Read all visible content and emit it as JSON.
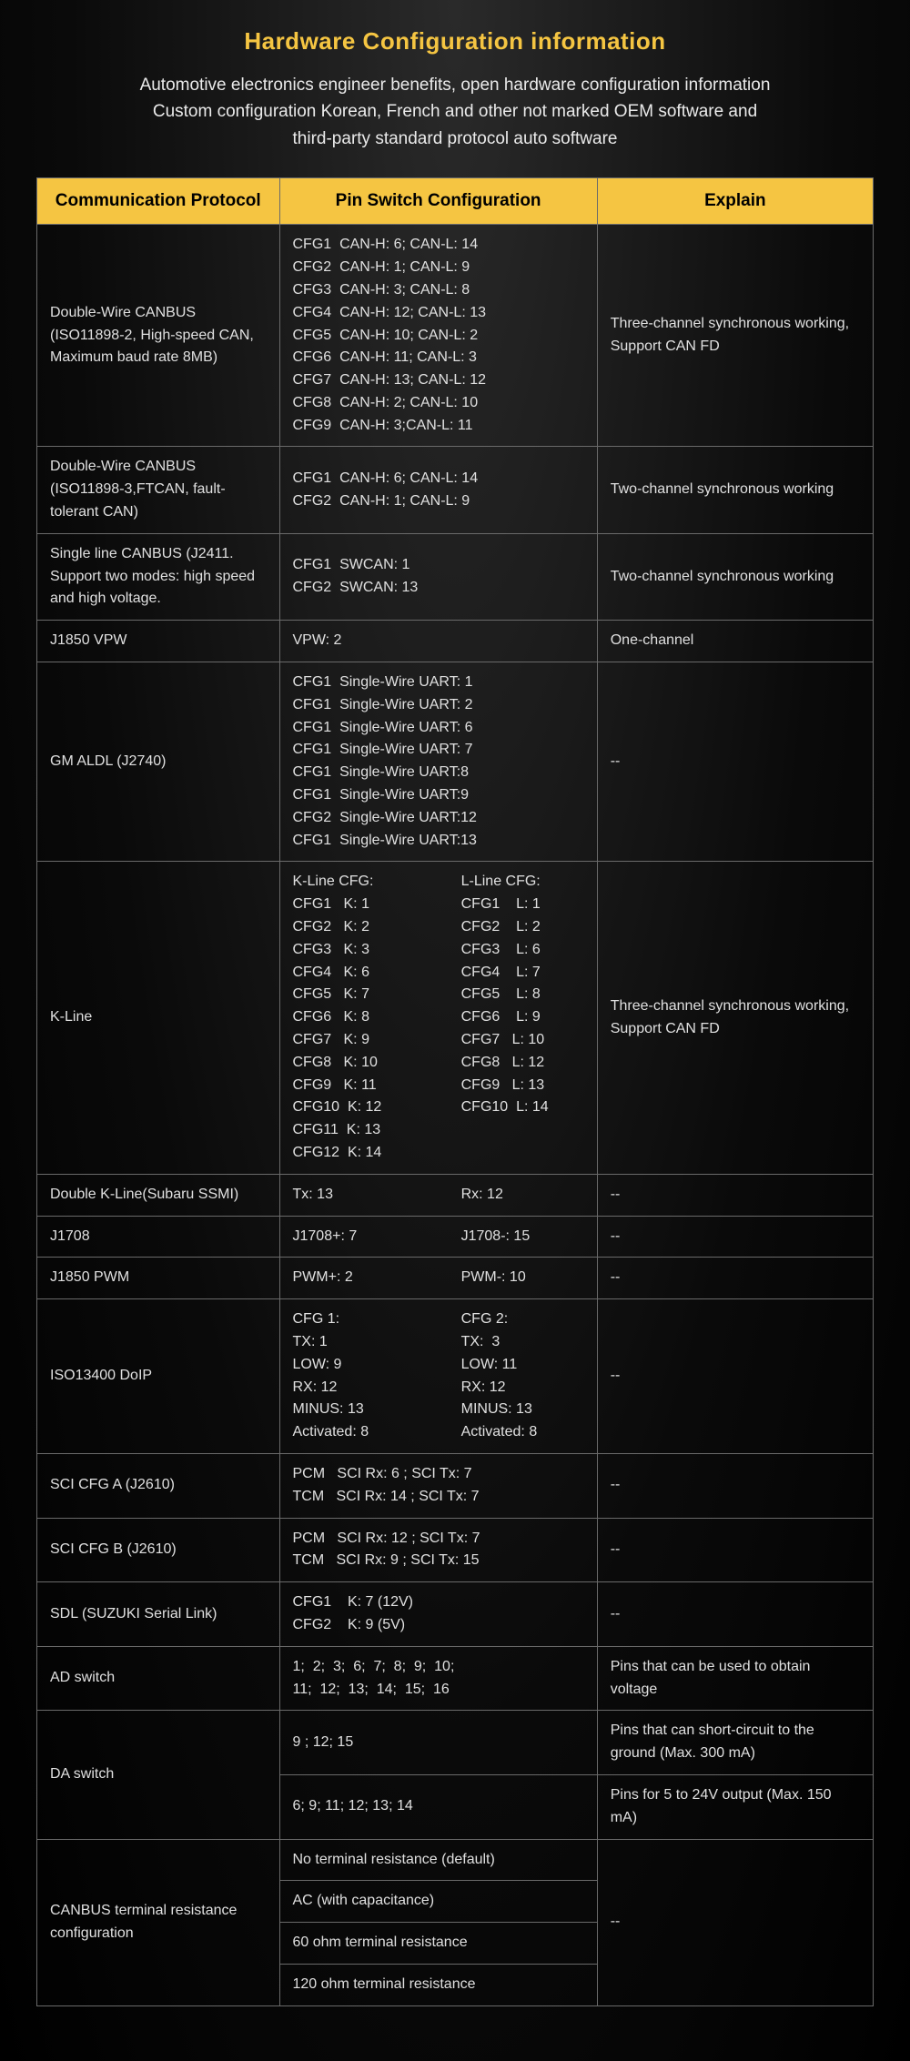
{
  "title": "Hardware Configuration information",
  "subtitle": "Automotive electronics engineer benefits, open hardware configuration information\nCustom configuration Korean, French and other not marked OEM software and\nthird-party standard protocol auto software",
  "columns": [
    "Communication Protocol",
    "Pin Switch Configuration",
    "Explain"
  ],
  "rows": [
    {
      "protocol": "Double-Wire CANBUS (ISO11898-2, High-speed CAN, Maximum baud rate 8MB)",
      "config": "CFG1  CAN-H: 6; CAN-L: 14\nCFG2  CAN-H: 1; CAN-L: 9\nCFG3  CAN-H: 3; CAN-L: 8\nCFG4  CAN-H: 12; CAN-L: 13\nCFG5  CAN-H: 10; CAN-L: 2\nCFG6  CAN-H: 11; CAN-L: 3\nCFG7  CAN-H: 13; CAN-L: 12\nCFG8  CAN-H: 2; CAN-L: 10\nCFG9  CAN-H: 3;CAN-L: 11",
      "explain": "Three-channel synchronous working, Support CAN FD"
    },
    {
      "protocol": "Double-Wire CANBUS (ISO11898-3,FTCAN, fault-tolerant CAN)",
      "config": "CFG1  CAN-H: 6; CAN-L: 14\nCFG2  CAN-H: 1; CAN-L: 9",
      "explain": "Two-channel synchronous working"
    },
    {
      "protocol": "Single line CANBUS (J2411. Support two modes: high speed and high voltage.",
      "config": "CFG1  SWCAN: 1\nCFG2  SWCAN: 13",
      "explain": "Two-channel synchronous working"
    },
    {
      "protocol": "J1850 VPW",
      "config": "VPW: 2",
      "explain": "One-channel"
    },
    {
      "protocol": "GM ALDL (J2740)",
      "config": "CFG1  Single-Wire UART: 1\nCFG1  Single-Wire UART: 2\nCFG1  Single-Wire UART: 6\nCFG1  Single-Wire UART: 7\nCFG1  Single-Wire UART:8\nCFG1  Single-Wire UART:9\nCFG2  Single-Wire UART:12\nCFG1  Single-Wire UART:13",
      "explain": " --"
    },
    {
      "protocol": "K-Line",
      "config_two": {
        "left": "K-Line CFG:\nCFG1   K: 1\nCFG2   K: 2\nCFG3   K: 3\nCFG4   K: 6\nCFG5   K: 7\nCFG6   K: 8\nCFG7   K: 9\nCFG8   K: 10\nCFG9   K: 11\nCFG10  K: 12\nCFG11  K: 13\nCFG12  K: 14",
        "right": "L-Line CFG:\nCFG1    L: 1\nCFG2    L: 2\nCFG3    L: 6\nCFG4    L: 7\nCFG5    L: 8\nCFG6    L: 9\nCFG7   L: 10\nCFG8   L: 12\nCFG9   L: 13\nCFG10  L: 14"
      },
      "explain": "Three-channel synchronous working, Support CAN FD"
    },
    {
      "protocol": "Double K-Line(Subaru SSMI)",
      "config_two": {
        "left": "Tx: 13",
        "right": "Rx: 12"
      },
      "explain": " --"
    },
    {
      "protocol": "J1708",
      "config_two": {
        "left": "J1708+: 7",
        "right": "J1708-: 15"
      },
      "explain": " --"
    },
    {
      "protocol": "J1850 PWM",
      "config_two": {
        "left": "PWM+: 2",
        "right": "PWM-: 10"
      },
      "explain": " --"
    },
    {
      "protocol": "ISO13400 DoIP",
      "config_two": {
        "left": "CFG 1:\nTX: 1\nLOW: 9\nRX: 12\nMINUS: 13\nActivated: 8",
        "right": "CFG 2:\nTX:  3\nLOW: 11\nRX: 12\nMINUS: 13\nActivated: 8"
      },
      "explain": " --"
    },
    {
      "protocol": "SCI CFG A (J2610)",
      "config": "PCM   SCI Rx: 6 ; SCI Tx: 7\nTCM   SCI Rx: 14 ; SCI Tx: 7",
      "explain": " --"
    },
    {
      "protocol": "SCI CFG B (J2610)",
      "config": "PCM   SCI Rx: 12 ; SCI Tx: 7\nTCM   SCI Rx: 9 ; SCI Tx: 15",
      "explain": " --"
    },
    {
      "protocol": "SDL (SUZUKI Serial Link)",
      "config": "CFG1    K: 7 (12V)\nCFG2    K: 9 (5V)",
      "explain": " --"
    },
    {
      "protocol": "AD switch",
      "config": "1;  2;  3;  6;  7;  8;  9;  10;\n11;  12;  13;  14;  15;  16",
      "explain": "Pins that can be used to obtain voltage"
    }
  ],
  "da_switch": {
    "protocol": "DA switch",
    "rows": [
      {
        "config": "9 ;  12;  15",
        "explain": "Pins that can short-circuit to the ground (Max. 300 mA)"
      },
      {
        "config": "6;  9;  11;  12;  13;  14",
        "explain": "Pins for 5 to 24V output (Max. 150 mA)"
      }
    ]
  },
  "canbus_term": {
    "protocol": "CANBUS terminal resistance configuration",
    "configs": [
      "No terminal resistance (default)",
      "AC (with capacitance)",
      "60 ohm terminal resistance",
      "120 ohm terminal resistance"
    ],
    "explain": " --"
  },
  "colors": {
    "accent": "#f5c542",
    "border": "#6a6a6a",
    "text": "#e0e0e0",
    "bg_dark": "#0a0a0a"
  }
}
